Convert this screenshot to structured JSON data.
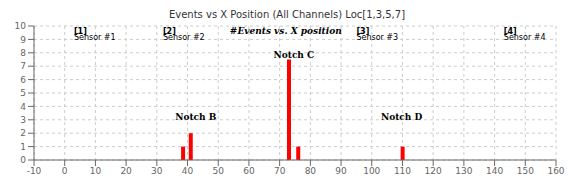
{
  "chart_data": {
    "type": "bar",
    "title": "Events vs X Position (All Channels) Loc[1,3,5,7]",
    "x": [
      38.5,
      41.0,
      73.0,
      76.0,
      110.0
    ],
    "values": [
      1.0,
      2.0,
      7.5,
      1.0,
      1.0
    ],
    "color": "#FF0000",
    "xlim": [
      -10,
      160
    ],
    "ylim": [
      0,
      10
    ],
    "xticks": [
      -10,
      0,
      10,
      20,
      30,
      40,
      50,
      60,
      70,
      80,
      90,
      100,
      110,
      120,
      130,
      140,
      150,
      160
    ],
    "yticks": [
      0,
      1,
      2,
      3,
      4,
      5,
      6,
      7,
      8,
      9,
      10
    ],
    "grid": true,
    "annotations": {
      "main": {
        "text": "#Events vs. X position",
        "x": 72,
        "y": 9.85
      },
      "notches": [
        {
          "text": "Notch B",
          "x": 36,
          "y": 3.0
        },
        {
          "text": "Notch C",
          "x": 68,
          "y": 7.6
        },
        {
          "text": "Notch D",
          "x": 103,
          "y": 3.0
        }
      ],
      "sensors": [
        {
          "x": 3,
          "num": "[1]",
          "name": "Sensor #1",
          "num_y": 9.85,
          "name_y": 9.35
        },
        {
          "x": 32,
          "num": "[2]",
          "name": "Sensor #2",
          "num_y": 9.85,
          "name_y": 9.35
        },
        {
          "x": 95,
          "num": "[3]",
          "name": "Sensor #3",
          "num_y": 9.85,
          "name_y": 9.35
        },
        {
          "x": 143,
          "num": "[4]",
          "name": "Sensor #4",
          "num_y": 9.85,
          "name_y": 9.35
        }
      ]
    }
  }
}
